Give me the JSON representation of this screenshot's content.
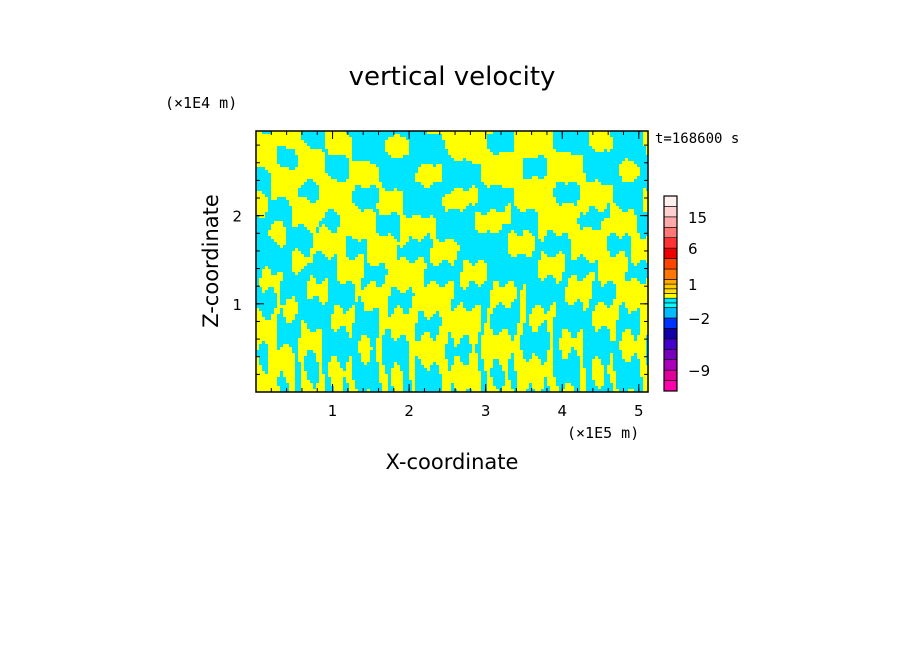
{
  "chart_data": {
    "type": "heatmap",
    "title": "vertical velocity",
    "xlabel": "X-coordinate",
    "ylabel": "Z-coordinate",
    "x_unit": "(×1E5 m)",
    "y_unit": "(×1E4 m)",
    "time_label": "t=168600 s",
    "xlim": [
      0,
      5.12
    ],
    "ylim": [
      0,
      2.96
    ],
    "x_ticks": [
      1,
      2,
      3,
      4,
      5
    ],
    "y_ticks": [
      1,
      2
    ],
    "colors": {
      "positive": "#ffff00",
      "negative": "#00e5ff",
      "frame": "#000000"
    },
    "colorbar": {
      "levels": [
        -12,
        -10.5,
        -9,
        -7.5,
        -6,
        -4.5,
        -3,
        -2,
        -1.5,
        -1,
        -0.5,
        0,
        0.5,
        1,
        1.5,
        3,
        4.5,
        6,
        9,
        12,
        15,
        18,
        21
      ],
      "colors": [
        "#ff00aa",
        "#dd0099",
        "#aa00bb",
        "#7700bb",
        "#4400cc",
        "#1100aa",
        "#0033ff",
        "#00bbff",
        "#00ffff",
        "#00e5ff",
        "#ffff00",
        "#ffe000",
        "#ffcc00",
        "#ffaa00",
        "#ff7700",
        "#ff4400",
        "#ee0000",
        "#ff3333",
        "#ff7777",
        "#ffaaaa",
        "#ffd0d0",
        "#fff0f0"
      ],
      "labeled_ticks": [
        "15",
        "6",
        "1",
        "−2",
        "−9"
      ],
      "labeled_values": [
        15,
        6,
        1,
        -2,
        -9
      ]
    }
  }
}
